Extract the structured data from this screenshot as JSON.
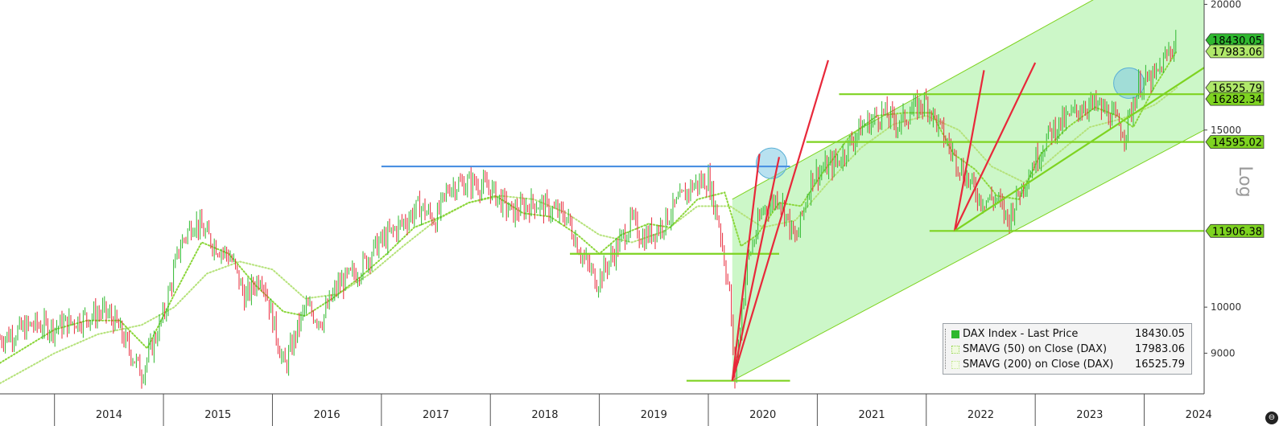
{
  "chart_data": {
    "type": "line",
    "title": "",
    "xlabel": "",
    "ylabel": "Log",
    "y_scale": "log",
    "ylim": [
      8200,
      20200
    ],
    "xlim": [
      2013.5,
      2024.55
    ],
    "y_ticks": [
      9000,
      10000,
      15000,
      20000
    ],
    "y_tick_labels": [
      "9000",
      "10000",
      "15000",
      "20000"
    ],
    "x_ticks": [
      "2014",
      "2015",
      "2016",
      "2017",
      "2018",
      "2019",
      "2020",
      "2021",
      "2022",
      "2023",
      "2024"
    ],
    "grid": false,
    "legend_position": "bottom-right",
    "series": [
      {
        "name": "DAX Index - Last Price",
        "color": "#2fb82f",
        "style": "candlestick",
        "last": "18430.05",
        "x": [
          2013.5,
          2013.8,
          2014.0,
          2014.2,
          2014.45,
          2014.55,
          2014.8,
          2015.0,
          2015.15,
          2015.28,
          2015.45,
          2015.62,
          2015.75,
          2015.9,
          2016.11,
          2016.3,
          2016.45,
          2016.6,
          2016.8,
          2016.95,
          2017.15,
          2017.35,
          2017.5,
          2017.62,
          2017.85,
          2018.0,
          2018.2,
          2018.4,
          2018.55,
          2018.7,
          2018.85,
          2018.98,
          2019.15,
          2019.3,
          2019.4,
          2019.55,
          2019.65,
          2019.85,
          2020.0,
          2020.1,
          2020.2,
          2020.24,
          2020.35,
          2020.5,
          2020.65,
          2020.8,
          2020.95,
          2021.2,
          2021.4,
          2021.6,
          2021.75,
          2021.87,
          2022.0,
          2022.2,
          2022.38,
          2022.5,
          2022.65,
          2022.75,
          2022.85,
          2023.0,
          2023.15,
          2023.3,
          2023.45,
          2023.58,
          2023.7,
          2023.82,
          2023.95,
          2024.1,
          2024.22,
          2024.3
        ],
        "y": [
          9300,
          9600,
          9550,
          9700,
          9900,
          9700,
          8600,
          9800,
          11500,
          12200,
          11600,
          11200,
          10200,
          10800,
          8700,
          10000,
          9700,
          10500,
          10900,
          11500,
          12000,
          12600,
          12200,
          13200,
          13300,
          13100,
          12400,
          12700,
          12500,
          12300,
          11200,
          10600,
          11400,
          12200,
          11700,
          12000,
          12400,
          13200,
          13400,
          12100,
          10200,
          8450,
          11000,
          12500,
          12900,
          11600,
          13500,
          14000,
          15100,
          15600,
          15200,
          15700,
          16000,
          14500,
          13400,
          12800,
          12800,
          12200,
          13000,
          14000,
          15000,
          15400,
          15900,
          15800,
          15500,
          14900,
          16600,
          16900,
          17900,
          18430
        ]
      },
      {
        "name": "SMAVG (50)  on Close (DAX)",
        "color": "#8bd63a",
        "style": "dotted",
        "last": "17983.06",
        "x": [
          2013.5,
          2014.0,
          2014.3,
          2014.6,
          2014.85,
          2015.1,
          2015.35,
          2015.6,
          2015.85,
          2016.1,
          2016.3,
          2016.55,
          2016.8,
          2017.05,
          2017.3,
          2017.55,
          2017.8,
          2018.05,
          2018.3,
          2018.55,
          2018.8,
          2019.0,
          2019.2,
          2019.45,
          2019.65,
          2019.9,
          2020.15,
          2020.3,
          2020.45,
          2020.65,
          2020.85,
          2021.05,
          2021.3,
          2021.55,
          2021.8,
          2022.05,
          2022.25,
          2022.45,
          2022.65,
          2022.85,
          2023.05,
          2023.3,
          2023.55,
          2023.75,
          2023.9,
          2024.1,
          2024.3
        ],
        "y": [
          8800,
          9500,
          9700,
          9700,
          9100,
          10300,
          11600,
          11300,
          10500,
          9900,
          9800,
          10200,
          10700,
          11300,
          12000,
          12300,
          12700,
          12900,
          12400,
          12300,
          11800,
          11300,
          11800,
          12100,
          12000,
          12800,
          13000,
          11500,
          11800,
          12700,
          12600,
          13600,
          14800,
          15500,
          15600,
          15600,
          14200,
          13700,
          12900,
          12800,
          14200,
          15100,
          15800,
          15500,
          15100,
          16600,
          17983
        ]
      },
      {
        "name": "SMAVG (200)  on Close (DAX)",
        "color": "#b5e27a",
        "style": "dotted",
        "last": "16525.79",
        "x": [
          2013.5,
          2014.0,
          2014.4,
          2014.8,
          2015.1,
          2015.4,
          2015.7,
          2016.0,
          2016.3,
          2016.6,
          2016.9,
          2017.2,
          2017.5,
          2017.8,
          2018.1,
          2018.4,
          2018.7,
          2019.0,
          2019.3,
          2019.6,
          2019.9,
          2020.2,
          2020.5,
          2020.8,
          2021.1,
          2021.4,
          2021.7,
          2022.0,
          2022.3,
          2022.6,
          2022.9,
          2023.2,
          2023.5,
          2023.8,
          2024.1,
          2024.3
        ],
        "y": [
          8400,
          9000,
          9400,
          9600,
          10000,
          10800,
          11100,
          10900,
          10200,
          10300,
          10800,
          11500,
          12200,
          12700,
          12900,
          12800,
          12400,
          11800,
          11600,
          11900,
          12600,
          12600,
          12000,
          12200,
          13300,
          14400,
          15200,
          15500,
          15000,
          13800,
          13300,
          14200,
          15100,
          15400,
          15900,
          16525
        ]
      }
    ],
    "annotations": {
      "horizontal_levels": [
        {
          "value": 13800,
          "x": [
            2017.0,
            2020.75
          ],
          "color": "#4a90e2"
        },
        {
          "value": 11300,
          "x": [
            2018.73,
            2020.65
          ],
          "color": "#7ed321"
        },
        {
          "value": 8450,
          "x": [
            2019.8,
            2020.75
          ],
          "color": "#7ed321"
        },
        {
          "value": 16282.34,
          "x": [
            2021.2,
            2024.55
          ],
          "color": "#7ed321"
        },
        {
          "value": 14595.02,
          "x": [
            2020.9,
            2024.55
          ],
          "color": "#7ed321"
        },
        {
          "value": 11906.38,
          "x": [
            2022.03,
            2024.55
          ],
          "color": "#7ed321"
        }
      ],
      "trend_lines": [
        {
          "from": [
            2020.22,
            8450
          ],
          "to": [
            2020.47,
            14200
          ],
          "color": "#e8283a"
        },
        {
          "from": [
            2020.22,
            8450
          ],
          "to": [
            2020.65,
            14100
          ],
          "color": "#e8283a"
        },
        {
          "from": [
            2020.22,
            8450
          ],
          "to": [
            2021.1,
            17600
          ],
          "color": "#e8283a"
        },
        {
          "from": [
            2022.26,
            11906
          ],
          "to": [
            2022.53,
            17200
          ],
          "color": "#e8283a"
        },
        {
          "from": [
            2022.26,
            11906
          ],
          "to": [
            2023.0,
            17500
          ],
          "color": "#e8283a"
        },
        {
          "from": [
            2022.26,
            11906
          ],
          "to": [
            2024.55,
            17300
          ],
          "color": "#7ed321"
        }
      ],
      "channel": {
        "upper": {
          "from": [
            2020.22,
            12800
          ],
          "to": [
            2023.6,
            20400
          ]
        },
        "lower": {
          "from": [
            2020.22,
            8450
          ],
          "to": [
            2024.55,
            15000
          ]
        },
        "fill": "#ccf7c8"
      },
      "highlight_circles": [
        {
          "x": 2020.58,
          "y": 13900
        },
        {
          "x": 2023.86,
          "y": 16700
        }
      ]
    },
    "value_tags": [
      {
        "label": "18430.05",
        "value": 18430.05,
        "color": "#2fb82f"
      },
      {
        "label": "17983.06",
        "value": 17983.06,
        "color": "#b0e86a"
      },
      {
        "label": "16525.79",
        "value": 16525.79,
        "color": "#b0e86a"
      },
      {
        "label": "16282.34",
        "value": 16282.34,
        "color": "#7ed321"
      },
      {
        "label": "14595.02",
        "value": 14595.02,
        "color": "#7ed321"
      },
      {
        "label": "11906.38",
        "value": 11906.38,
        "color": "#7ed321"
      }
    ]
  },
  "legend": {
    "items": [
      {
        "label": "DAX Index - Last Price",
        "value": "18430.05",
        "color": "#2fb82f"
      },
      {
        "label": "SMAVG (50)  on Close (DAX)",
        "value": "17983.06",
        "color": "#d9f0b0"
      },
      {
        "label": "SMAVG (200)  on Close (DAX)",
        "value": "16525.79",
        "color": "#e8f5d0"
      }
    ]
  }
}
